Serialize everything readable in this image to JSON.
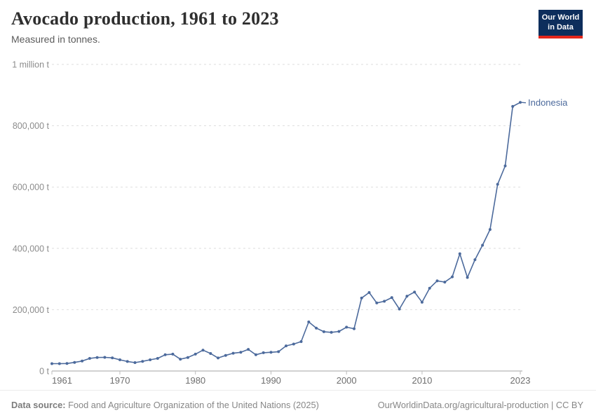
{
  "header": {
    "title": "Avocado production, 1961 to 2023",
    "subtitle": "Measured in tonnes."
  },
  "logo": {
    "line1": "Our World",
    "line2": "in Data",
    "bg_color": "#0d2e5c",
    "accent_color": "#e3261b"
  },
  "footer": {
    "source_label": "Data source:",
    "source_text": " Food and Agriculture Organization of the United Nations (2025)",
    "right_text": "OurWorldinData.org/agricultural-production | CC BY"
  },
  "chart_data": {
    "type": "line",
    "title": "Avocado production, 1961 to 2023",
    "subtitle": "Measured in tonnes.",
    "unit": "tonnes",
    "xlim": [
      1961,
      2023
    ],
    "ylim": [
      0,
      1000000
    ],
    "grid": "horizontal-dashed",
    "legend_position": "end-of-line-label",
    "x_ticks": [
      1961,
      1970,
      1980,
      1990,
      2000,
      2010,
      2023
    ],
    "y_ticks": [
      {
        "value": 0,
        "label": "0 t"
      },
      {
        "value": 200000,
        "label": "200,000 t"
      },
      {
        "value": 400000,
        "label": "400,000 t"
      },
      {
        "value": 600000,
        "label": "600,000 t"
      },
      {
        "value": 800000,
        "label": "800,000 t"
      },
      {
        "value": 1000000,
        "label": "1 million t"
      }
    ],
    "series": [
      {
        "name": "Indonesia",
        "color": "#4C6A9C",
        "x": [
          1961,
          1962,
          1963,
          1964,
          1965,
          1966,
          1967,
          1968,
          1969,
          1970,
          1971,
          1972,
          1973,
          1974,
          1975,
          1976,
          1977,
          1978,
          1979,
          1980,
          1981,
          1982,
          1983,
          1984,
          1985,
          1986,
          1987,
          1988,
          1989,
          1990,
          1991,
          1992,
          1993,
          1994,
          1995,
          1996,
          1997,
          1998,
          1999,
          2000,
          2001,
          2002,
          2003,
          2004,
          2005,
          2006,
          2007,
          2008,
          2009,
          2010,
          2011,
          2012,
          2013,
          2014,
          2015,
          2016,
          2017,
          2018,
          2019,
          2020,
          2021,
          2022,
          2023
        ],
        "values": [
          24000,
          24000,
          24500,
          28000,
          32500,
          41000,
          44000,
          44500,
          43000,
          36500,
          31000,
          27500,
          31500,
          36500,
          41000,
          53000,
          55000,
          38500,
          44000,
          55000,
          68000,
          57000,
          42500,
          51000,
          58000,
          61000,
          70500,
          53000,
          59500,
          61000,
          63000,
          82000,
          88000,
          96000,
          160000,
          140000,
          128000,
          126000,
          129000,
          143000,
          138000,
          238000,
          256000,
          222000,
          227500,
          239500,
          202000,
          244000,
          257500,
          224500,
          270000,
          294000,
          290000,
          307000,
          382500,
          305000,
          363000,
          410000,
          461500,
          609000,
          669000,
          863000,
          876000
        ]
      }
    ],
    "colors": {
      "gridline": "#dedede",
      "axis_line": "#a3a3a3",
      "tick_label": "#8c8c8c",
      "year_label": "#6e6e6e"
    }
  }
}
